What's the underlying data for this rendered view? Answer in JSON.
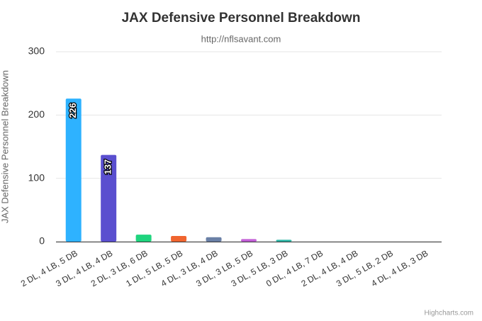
{
  "chart_data": {
    "type": "bar",
    "title": "JAX Defensive Personnel Breakdown",
    "subtitle": "http://nflsavant.com",
    "y_axis_label": "JAX Defensive Personnel Breakdown",
    "credits": "Highcharts.com",
    "categories": [
      "2 DL, 4 LB, 5 DB",
      "3 DL, 4 LB, 4 DB",
      "2 DL, 3 LB, 6 DB",
      "1 DL, 5 LB, 5 DB",
      "4 DL, 3 LB, 4 DB",
      "3 DL, 3 LB, 5 DB",
      "3 DL, 5 LB, 3 DB",
      "0 DL, 4 LB, 7 DB",
      "2 DL, 4 LB, 4 DB",
      "3 DL, 5 LB, 2 DB",
      "4 DL, 4 LB, 3 DB"
    ],
    "values": [
      226,
      137,
      11,
      9,
      7,
      4,
      3,
      0,
      0,
      0,
      0
    ],
    "colors": [
      "#2eb2ff",
      "#5a4fcf",
      "#1fd47e",
      "#f0652f",
      "#6a80a6",
      "#c25fd6",
      "#2bb5a5",
      "#e8c037",
      "#e04a8c",
      "#7cc04b",
      "#d35757"
    ],
    "ylim": [
      0,
      300
    ],
    "yticks": [
      0,
      100,
      200,
      300
    ],
    "grid": true
  }
}
